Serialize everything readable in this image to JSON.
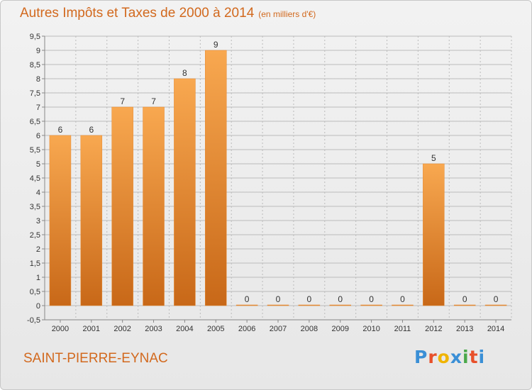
{
  "title": "Autres Impôts et Taxes de 2000 à 2014",
  "unit_note": "(en milliers d'€)",
  "commune": "SAINT-PIERRE-EYNAC",
  "logo": {
    "text": "Proxiti",
    "colors": [
      "#3a8fd6",
      "#e8502a",
      "#f0b400",
      "#3a8fd6",
      "#4aa84a",
      "#e8502a",
      "#3a8fd6"
    ]
  },
  "colors": {
    "accent": "#d2691e",
    "bar_top": "#f8a850",
    "bar_bottom": "#c86818",
    "grid": "#bbbbbb"
  },
  "chart_data": {
    "type": "bar",
    "categories": [
      "2000",
      "2001",
      "2002",
      "2003",
      "2004",
      "2005",
      "2006",
      "2007",
      "2008",
      "2009",
      "2010",
      "2011",
      "2012",
      "2013",
      "2014"
    ],
    "values": [
      6,
      6,
      7,
      7,
      8,
      9,
      0,
      0,
      0,
      0,
      0,
      0,
      5,
      0,
      0
    ],
    "ylim": [
      -0.5,
      9.5
    ],
    "yticks": [
      "-0,5",
      "0",
      "0,5",
      "1",
      "1,5",
      "2",
      "2,5",
      "3",
      "3,5",
      "4",
      "4,5",
      "5",
      "5,5",
      "6",
      "6,5",
      "7",
      "7,5",
      "8",
      "8,5",
      "9",
      "9,5"
    ],
    "ytick_values": [
      -0.5,
      0,
      0.5,
      1,
      1.5,
      2,
      2.5,
      3,
      3.5,
      4,
      4.5,
      5,
      5.5,
      6,
      6.5,
      7,
      7.5,
      8,
      8.5,
      9,
      9.5
    ],
    "grid": true,
    "xlabel": "",
    "ylabel": ""
  }
}
